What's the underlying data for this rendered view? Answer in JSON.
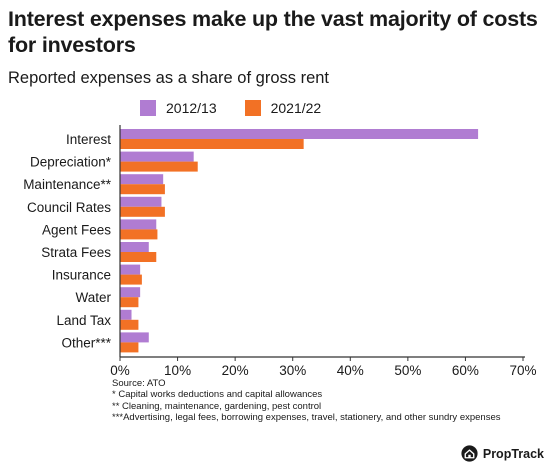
{
  "title": "Interest expenses make up the vast majority of costs for investors",
  "subtitle": "Reported expenses as a share of gross rent",
  "colors": {
    "s2012": "#B07CD2",
    "s2021": "#F27125",
    "axis": "#333333"
  },
  "legend": [
    {
      "label": "2012/13",
      "color": "#B07CD2"
    },
    {
      "label": "2021/22",
      "color": "#F27125"
    }
  ],
  "chart_data": {
    "type": "bar",
    "orientation": "horizontal",
    "categories": [
      "Interest",
      "Depreciation*",
      "Maintenance**",
      "Council Rates",
      "Agent Fees",
      "Strata Fees",
      "Insurance",
      "Water",
      "Land Tax",
      "Other***"
    ],
    "series": [
      {
        "name": "2012/13",
        "values": [
          62.2,
          12.8,
          7.5,
          7.2,
          6.3,
          5.0,
          3.5,
          3.5,
          2.0,
          5.0
        ]
      },
      {
        "name": "2021/22",
        "values": [
          31.9,
          13.5,
          7.8,
          7.8,
          6.5,
          6.3,
          3.8,
          3.2,
          3.2,
          3.2
        ]
      }
    ],
    "xlim": [
      0,
      70
    ],
    "xticks": [
      "0%",
      "10%",
      "20%",
      "30%",
      "40%",
      "50%",
      "60%",
      "70%"
    ],
    "legend_position": "top"
  },
  "notes": [
    "Source: ATO",
    "* Capital works deductions and capital allowances",
    "** Cleaning, maintenance, gardening, pest control",
    "***Advertising, legal fees, borrowing expenses, travel, stationery, and other sundry expenses"
  ],
  "brand": {
    "name": "PropTrack",
    "icon": "house-icon"
  }
}
